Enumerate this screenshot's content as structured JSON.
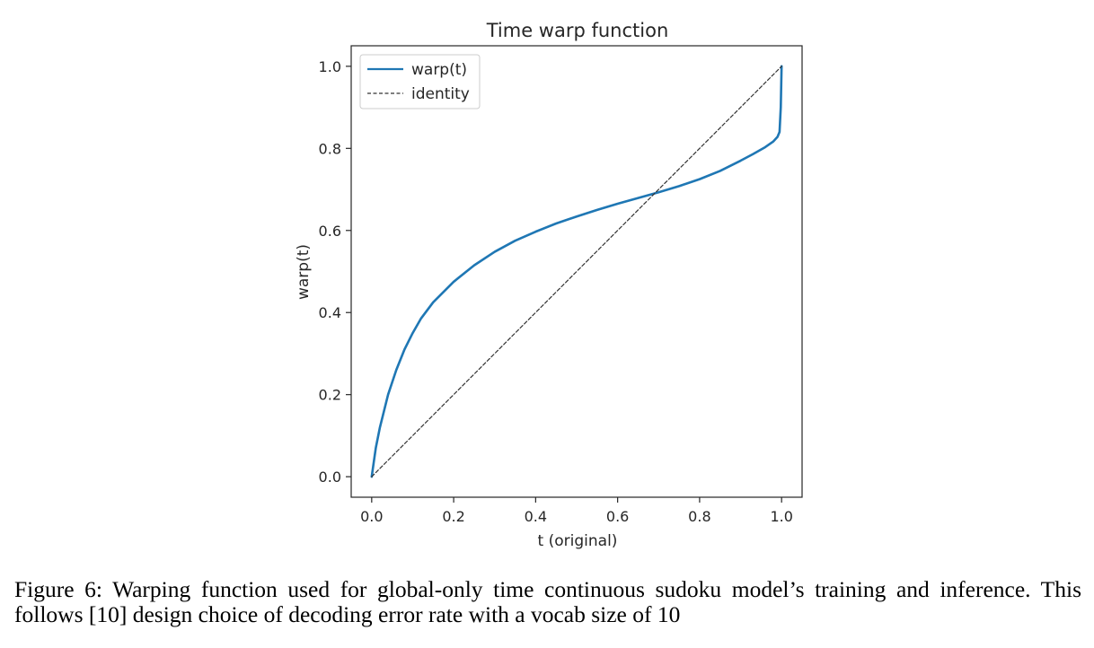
{
  "chart_data": {
    "type": "line",
    "title": "Time warp function",
    "xlabel": "t (original)",
    "ylabel": "warp(t)",
    "xlim": [
      -0.05,
      1.05
    ],
    "ylim": [
      -0.05,
      1.05
    ],
    "xticks": [
      0.0,
      0.2,
      0.4,
      0.6,
      0.8,
      1.0
    ],
    "xtick_labels": [
      "0.0",
      "0.2",
      "0.4",
      "0.6",
      "0.8",
      "1.0"
    ],
    "yticks": [
      0.0,
      0.2,
      0.4,
      0.6,
      0.8,
      1.0
    ],
    "ytick_labels": [
      "0.0",
      "0.2",
      "0.4",
      "0.6",
      "0.8",
      "1.0"
    ],
    "grid": false,
    "legend": {
      "position": "top-left"
    },
    "series": [
      {
        "name": "warp(t)",
        "color": "#1f77b4",
        "style": "solid",
        "x": [
          0.0,
          0.01,
          0.02,
          0.04,
          0.06,
          0.08,
          0.1,
          0.12,
          0.15,
          0.2,
          0.25,
          0.3,
          0.35,
          0.4,
          0.45,
          0.5,
          0.55,
          0.6,
          0.65,
          0.7,
          0.75,
          0.8,
          0.85,
          0.9,
          0.93,
          0.96,
          0.98,
          0.99,
          0.995,
          0.998,
          1.0
        ],
        "y": [
          0.0,
          0.07,
          0.12,
          0.2,
          0.26,
          0.31,
          0.35,
          0.385,
          0.425,
          0.475,
          0.515,
          0.548,
          0.575,
          0.597,
          0.617,
          0.634,
          0.65,
          0.665,
          0.679,
          0.693,
          0.708,
          0.725,
          0.745,
          0.77,
          0.786,
          0.803,
          0.817,
          0.828,
          0.84,
          0.9,
          1.0
        ]
      },
      {
        "name": "identity",
        "color": "#333333",
        "style": "dashed",
        "x": [
          0.0,
          1.0
        ],
        "y": [
          0.0,
          1.0
        ]
      }
    ]
  },
  "caption": "Figure 6:  Warping function used for global-only time continuous sudoku model’s training and inference. This follows  [10] design choice of decoding error rate with a vocab size of 10"
}
